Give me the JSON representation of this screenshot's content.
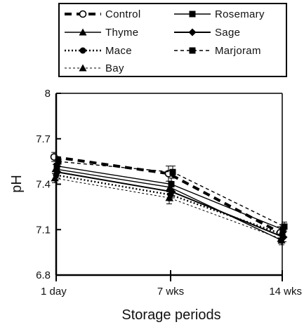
{
  "chart_data": {
    "type": "line",
    "categories": [
      "1 day",
      "7 wks",
      "14 wks"
    ],
    "xlabel": "Storage periods",
    "ylabel": "pH",
    "ylim": [
      6.8,
      8.0
    ],
    "yticks": [
      "6.8",
      "7.1",
      "7.4",
      "7.7",
      "8"
    ],
    "grid": false,
    "legend_position": "top",
    "series": [
      {
        "name": "Control",
        "values": [
          7.58,
          7.47,
          7.08
        ],
        "marker": "circle-open",
        "line": "thick-dash",
        "error": [
          0.03,
          0.05,
          0.04
        ]
      },
      {
        "name": "Rosemary",
        "values": [
          7.52,
          7.4,
          7.1
        ],
        "marker": "square",
        "line": "solid",
        "error": [
          0.03,
          0.04,
          0.03
        ]
      },
      {
        "name": "Thyme",
        "values": [
          7.5,
          7.38,
          7.03
        ],
        "marker": "triangle",
        "line": "solid",
        "error": [
          0.03,
          0.04,
          0.03
        ]
      },
      {
        "name": "Sage",
        "values": [
          7.48,
          7.35,
          7.05
        ],
        "marker": "diamond",
        "line": "solid-thick",
        "error": [
          0.04,
          0.04,
          0.03
        ]
      },
      {
        "name": "Mace",
        "values": [
          7.46,
          7.33,
          7.07
        ],
        "marker": "circle",
        "line": "dotted",
        "error": [
          0.03,
          0.04,
          0.03
        ]
      },
      {
        "name": "Marjoram",
        "values": [
          7.55,
          7.48,
          7.12
        ],
        "marker": "square",
        "line": "dashed",
        "error": [
          0.03,
          0.04,
          0.03
        ]
      },
      {
        "name": "Bay",
        "values": [
          7.44,
          7.31,
          7.04
        ],
        "marker": "triangle",
        "line": "dashed-fine",
        "error": [
          0.03,
          0.04,
          0.03
        ]
      }
    ]
  }
}
